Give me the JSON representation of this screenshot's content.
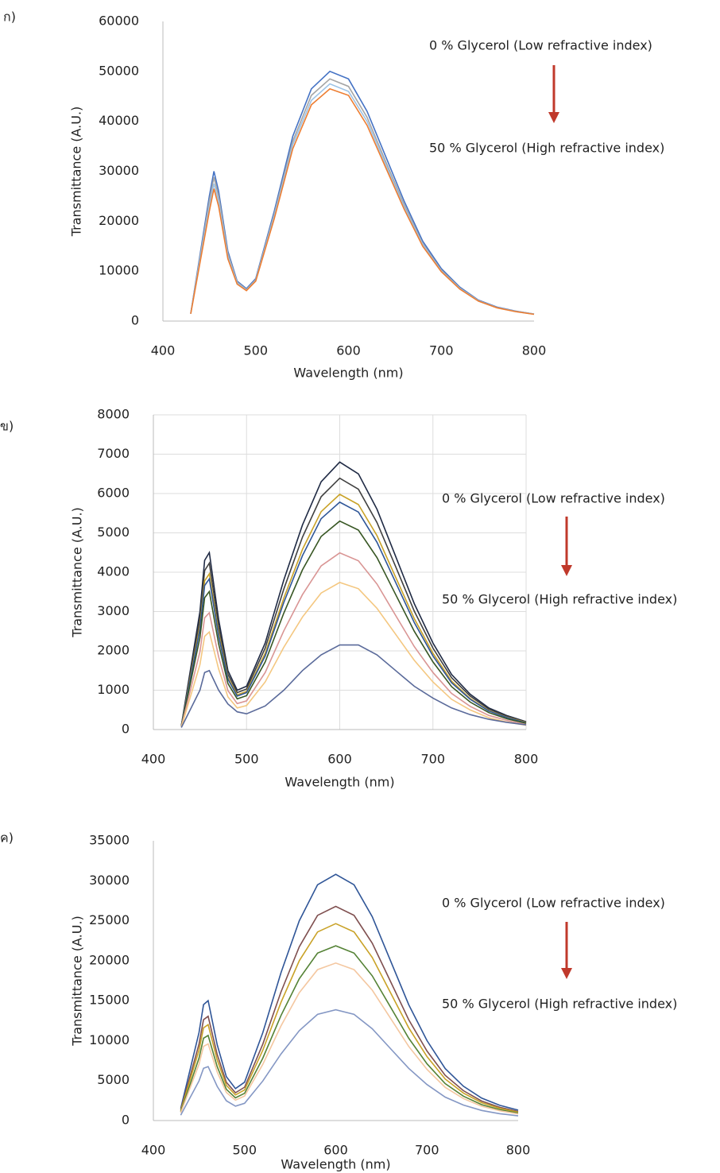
{
  "chart_data": [
    {
      "type": "line",
      "panel_label": "ก)",
      "y_label": "Transmittance (A.U.)",
      "x_label": "Wavelength (nm)",
      "annotations": [
        "0 % Glycerol  (Low refractive index)",
        "50 % Glycerol  (High refractive index)"
      ],
      "xlim": [
        400,
        800
      ],
      "xticks": [
        400,
        500,
        600,
        700,
        800
      ],
      "ylim": [
        0,
        60000
      ],
      "yticks": [
        0,
        10000,
        20000,
        30000,
        40000,
        50000,
        60000
      ],
      "grid": false,
      "x": [
        430,
        450,
        455,
        460,
        470,
        480,
        490,
        500,
        520,
        540,
        560,
        580,
        600,
        620,
        640,
        660,
        680,
        700,
        720,
        740,
        760,
        780,
        800
      ],
      "series": [
        {
          "color": "#4472c4",
          "values": [
            1500,
            25000,
            30000,
            26000,
            14000,
            8000,
            6500,
            8500,
            22000,
            37000,
            46500,
            50000,
            48500,
            42000,
            33000,
            24000,
            16000,
            10500,
            6800,
            4200,
            2800,
            2000,
            1400
          ]
        },
        {
          "color": "#a5a5a5",
          "values": [
            1500,
            24000,
            28800,
            25000,
            13500,
            7800,
            6300,
            8300,
            21400,
            36000,
            45200,
            48500,
            47000,
            40800,
            32000,
            23300,
            15500,
            10200,
            6600,
            4100,
            2700,
            1950,
            1400
          ]
        },
        {
          "color": "#9dc3e6",
          "values": [
            1480,
            23000,
            27500,
            24000,
            13000,
            7600,
            6200,
            8100,
            21000,
            35300,
            44200,
            47500,
            46000,
            40000,
            31400,
            22800,
            15300,
            10000,
            6500,
            4050,
            2700,
            1920,
            1380
          ]
        },
        {
          "color": "#ed7d31",
          "values": [
            1450,
            22000,
            26500,
            23000,
            12500,
            7400,
            6100,
            8000,
            20500,
            34500,
            43300,
            46500,
            45200,
            39200,
            30800,
            22400,
            15000,
            9900,
            6400,
            4000,
            2650,
            1900,
            1350
          ]
        }
      ]
    },
    {
      "type": "line",
      "panel_label": "ข)",
      "y_label": "Transmittance (A.U.)",
      "x_label": "Wavelength (nm)",
      "annotations": [
        "0 % Glycerol  (Low refractive index)",
        "50 % Glycerol  (High refractive index)"
      ],
      "xlim": [
        400,
        800
      ],
      "xticks": [
        400,
        500,
        600,
        700,
        800
      ],
      "ylim": [
        0,
        8000
      ],
      "yticks": [
        0,
        1000,
        2000,
        3000,
        4000,
        5000,
        6000,
        7000,
        8000
      ],
      "grid": true,
      "x": [
        430,
        450,
        455,
        460,
        470,
        480,
        490,
        500,
        520,
        540,
        560,
        580,
        600,
        620,
        640,
        660,
        680,
        700,
        720,
        740,
        760,
        780,
        800
      ],
      "series": [
        {
          "color": "#1f2a44",
          "values": [
            100,
            3000,
            4300,
            4500,
            2800,
            1500,
            1000,
            1100,
            2200,
            3800,
            5200,
            6300,
            6800,
            6500,
            5600,
            4400,
            3200,
            2200,
            1400,
            900,
            550,
            350,
            200
          ]
        },
        {
          "color": "#404040",
          "values": [
            90,
            2820,
            4040,
            4230,
            2630,
            1410,
            940,
            1030,
            2070,
            3570,
            4890,
            5920,
            6390,
            6110,
            5260,
            4140,
            3010,
            2070,
            1320,
            850,
            520,
            330,
            190
          ]
        },
        {
          "color": "#c9a227",
          "values": [
            90,
            2640,
            3780,
            3960,
            2460,
            1320,
            880,
            970,
            1940,
            3340,
            4580,
            5540,
            5980,
            5720,
            4930,
            3870,
            2820,
            1940,
            1230,
            790,
            480,
            310,
            180
          ]
        },
        {
          "color": "#2e5597",
          "values": [
            90,
            2550,
            3660,
            3830,
            2380,
            1280,
            850,
            940,
            1870,
            3230,
            4420,
            5360,
            5780,
            5530,
            4760,
            3740,
            2720,
            1870,
            1190,
            770,
            470,
            300,
            170
          ]
        },
        {
          "color": "#375623",
          "values": [
            80,
            2340,
            3350,
            3510,
            2180,
            1170,
            780,
            860,
            1720,
            2960,
            4060,
            4910,
            5300,
            5070,
            4370,
            3430,
            2500,
            1720,
            1090,
            700,
            430,
            270,
            160
          ]
        },
        {
          "color": "#d99594",
          "values": [
            70,
            1980,
            2840,
            2970,
            1850,
            990,
            660,
            730,
            1450,
            2510,
            3430,
            4160,
            4490,
            4290,
            3700,
            2900,
            2110,
            1450,
            920,
            590,
            360,
            230,
            130
          ]
        },
        {
          "color": "#f4c780",
          "values": [
            60,
            1650,
            2370,
            2480,
            1540,
            830,
            550,
            610,
            1210,
            2090,
            2860,
            3470,
            3740,
            3580,
            3080,
            2420,
            1760,
            1210,
            770,
            500,
            300,
            190,
            110
          ]
        },
        {
          "color": "#5a6a9a",
          "values": [
            50,
            1000,
            1450,
            1500,
            1000,
            650,
            450,
            400,
            600,
            1000,
            1500,
            1900,
            2150,
            2150,
            1900,
            1500,
            1100,
            800,
            550,
            380,
            260,
            180,
            120
          ]
        }
      ]
    },
    {
      "type": "line",
      "panel_label": "ค)",
      "y_label": "Transmittance (A.U.)",
      "x_label": "Wavelength (nm)",
      "annotations": [
        "0 % Glycerol  (Low refractive index)",
        "50 % Glycerol  (High refractive index)"
      ],
      "xlim": [
        400,
        800
      ],
      "xticks": [
        400,
        500,
        600,
        700,
        800
      ],
      "ylim": [
        0,
        35000
      ],
      "yticks": [
        0,
        5000,
        10000,
        15000,
        20000,
        25000,
        30000,
        35000
      ],
      "grid": false,
      "x": [
        430,
        450,
        455,
        460,
        470,
        480,
        490,
        500,
        520,
        540,
        560,
        580,
        600,
        620,
        640,
        660,
        680,
        700,
        720,
        740,
        760,
        780,
        800
      ],
      "series": [
        {
          "color": "#2f5597",
          "values": [
            1500,
            11000,
            14500,
            15000,
            9500,
            5500,
            4000,
            4800,
            11000,
            18500,
            25000,
            29500,
            30800,
            29500,
            25500,
            20000,
            14500,
            10000,
            6500,
            4300,
            2800,
            1900,
            1300
          ]
        },
        {
          "color": "#7f4f4f",
          "values": [
            1310,
            9570,
            12620,
            13050,
            8270,
            4790,
            3480,
            4180,
            9570,
            16100,
            21750,
            25670,
            26800,
            25670,
            22190,
            17400,
            12620,
            8700,
            5660,
            3740,
            2440,
            1650,
            1130
          ]
        },
        {
          "color": "#c9a227",
          "values": [
            1200,
            8800,
            11600,
            12000,
            7600,
            4400,
            3200,
            3840,
            8800,
            14800,
            20000,
            23600,
            24640,
            23600,
            20400,
            16000,
            11600,
            8000,
            5200,
            3440,
            2240,
            1520,
            1040
          ]
        },
        {
          "color": "#548235",
          "values": [
            1070,
            7810,
            10300,
            10650,
            6750,
            3910,
            2840,
            3410,
            7810,
            13140,
            17750,
            20950,
            21870,
            20950,
            18110,
            14200,
            10300,
            7100,
            4620,
            3050,
            1990,
            1350,
            920
          ]
        },
        {
          "color": "#f4c7a0",
          "values": [
            960,
            7040,
            9280,
            9600,
            6080,
            3520,
            2560,
            3070,
            7040,
            11840,
            16000,
            18880,
            19710,
            18880,
            16320,
            12800,
            9280,
            6400,
            4160,
            2750,
            1790,
            1220,
            830
          ]
        },
        {
          "color": "#8497c4",
          "values": [
            680,
            4950,
            6530,
            6750,
            4280,
            2480,
            1800,
            2160,
            4950,
            8330,
            11250,
            13280,
            13860,
            13280,
            11480,
            9000,
            6530,
            4500,
            2930,
            1940,
            1260,
            860,
            590
          ]
        }
      ]
    }
  ]
}
